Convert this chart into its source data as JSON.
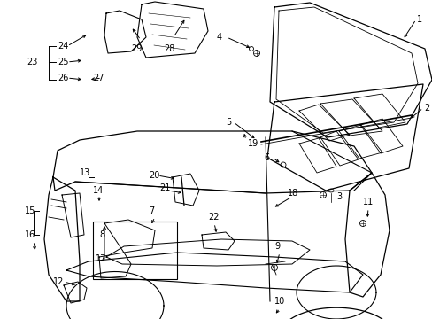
{
  "bg_color": "#ffffff",
  "fig_width": 4.89,
  "fig_height": 3.6,
  "dpi": 100,
  "image_b64": ""
}
